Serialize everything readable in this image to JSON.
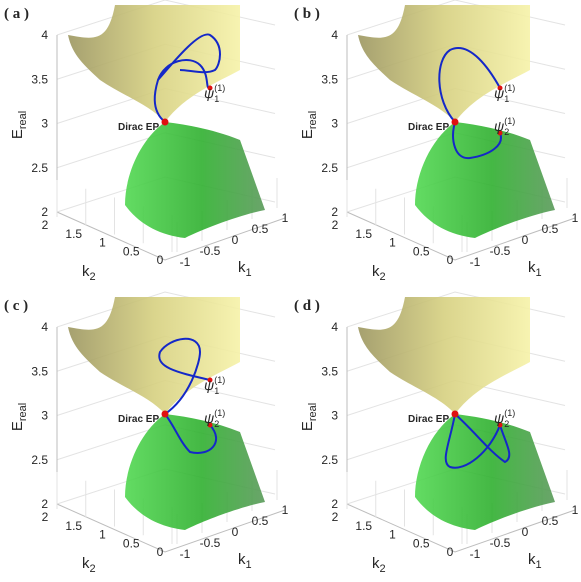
{
  "chart_data": [
    {
      "type": "surface3d",
      "panel_label": "( a )",
      "zlabel": "E",
      "zlabel_sub": "real",
      "xlabel": "k",
      "xlabel_sub": "1",
      "ylabel": "k",
      "ylabel_sub": "2",
      "zlim": [
        2,
        4
      ],
      "zticks": [
        2,
        2.5,
        3,
        3.5,
        4
      ],
      "xlim": [
        -1,
        1
      ],
      "xticks": [
        -1,
        -0.5,
        0,
        0.5,
        1
      ],
      "ylim": [
        0,
        2
      ],
      "yticks": [
        0,
        0.5,
        1,
        1.5,
        2
      ],
      "ep_label": "Dirac EP",
      "states": [
        {
          "symbol": "ψ",
          "sub": "1",
          "sup": "(1)"
        }
      ]
    },
    {
      "type": "surface3d",
      "panel_label": "( b )",
      "zlabel": "E",
      "zlabel_sub": "real",
      "xlabel": "k",
      "xlabel_sub": "1",
      "ylabel": "k",
      "ylabel_sub": "2",
      "zlim": [
        2,
        4
      ],
      "zticks": [
        2,
        2.5,
        3,
        3.5,
        4
      ],
      "xlim": [
        -1,
        1
      ],
      "xticks": [
        -1,
        -0.5,
        0,
        0.5,
        1
      ],
      "ylim": [
        0,
        2
      ],
      "yticks": [
        0,
        0.5,
        1,
        1.5,
        2
      ],
      "ep_label": "Dirac EP",
      "states": [
        {
          "symbol": "ψ",
          "sub": "1",
          "sup": "(1)"
        },
        {
          "symbol": "ψ",
          "sub": "2",
          "sup": "(1)"
        }
      ]
    },
    {
      "type": "surface3d",
      "panel_label": "( c )",
      "zlabel": "E",
      "zlabel_sub": "real",
      "xlabel": "k",
      "xlabel_sub": "1",
      "ylabel": "k",
      "ylabel_sub": "2",
      "zlim": [
        2,
        4
      ],
      "zticks": [
        2,
        2.5,
        3,
        3.5,
        4
      ],
      "xlim": [
        -1,
        1
      ],
      "xticks": [
        -1,
        -0.5,
        0,
        0.5,
        1
      ],
      "ylim": [
        0,
        2
      ],
      "yticks": [
        0,
        0.5,
        1,
        1.5,
        2
      ],
      "ep_label": "Dirac EP",
      "states": [
        {
          "symbol": "ψ",
          "sub": "1",
          "sup": "(1)"
        },
        {
          "symbol": "ψ",
          "sub": "2",
          "sup": "(1)"
        }
      ]
    },
    {
      "type": "surface3d",
      "panel_label": "( d )",
      "zlabel": "E",
      "zlabel_sub": "real",
      "xlabel": "k",
      "xlabel_sub": "1",
      "ylabel": "k",
      "ylabel_sub": "2",
      "zlim": [
        2,
        4
      ],
      "zticks": [
        2,
        2.5,
        3,
        3.5,
        4
      ],
      "xlim": [
        -1,
        1
      ],
      "xticks": [
        -1,
        -0.5,
        0,
        0.5,
        1
      ],
      "ylim": [
        0,
        2
      ],
      "yticks": [
        0,
        0.5,
        1,
        1.5,
        2
      ],
      "ep_label": "Dirac EP",
      "states": [
        {
          "symbol": "ψ",
          "sub": "2",
          "sup": "(1)"
        }
      ]
    }
  ]
}
